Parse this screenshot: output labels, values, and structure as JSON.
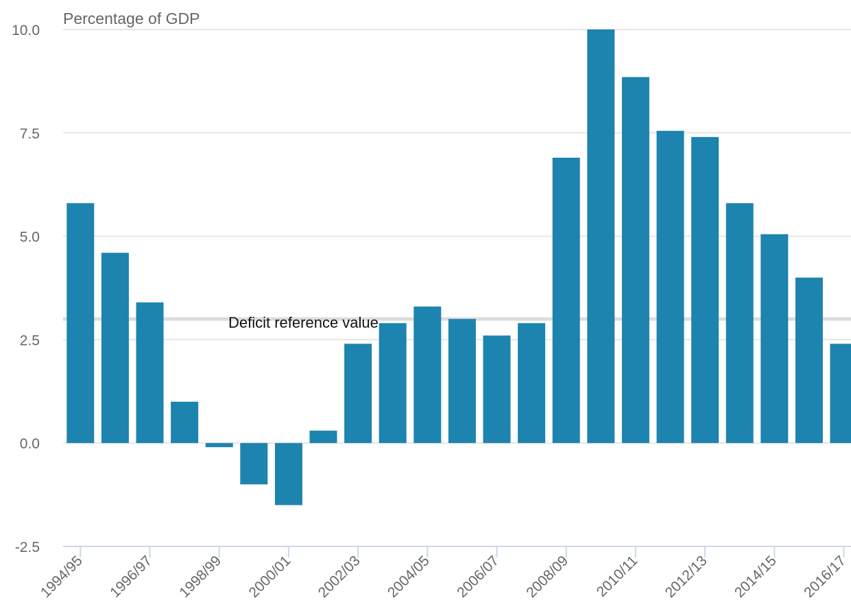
{
  "chart_data": {
    "type": "bar",
    "ylabel": "Percentage of GDP",
    "xlabel": "",
    "ylim": [
      -2.5,
      10.0
    ],
    "yticks": [
      -2.5,
      0.0,
      2.5,
      5.0,
      7.5,
      10.0
    ],
    "ytick_labels": [
      "-2.5",
      "0.0",
      "2.5",
      "5.0",
      "7.5",
      "10.0"
    ],
    "categories": [
      "1994/95",
      "1995/96",
      "1996/97",
      "1997/98",
      "1998/99",
      "1999/00",
      "2000/01",
      "2001/02",
      "2002/03",
      "2003/04",
      "2004/05",
      "2005/06",
      "2006/07",
      "2007/08",
      "2008/09",
      "2009/10",
      "2010/11",
      "2011/12",
      "2012/13",
      "2013/14",
      "2014/15",
      "2015/16",
      "2016/17"
    ],
    "xtick_labels": [
      "1994/95",
      "1996/97",
      "1998/99",
      "2000/01",
      "2002/03",
      "2004/05",
      "2006/07",
      "2008/09",
      "2010/11",
      "2012/13",
      "2014/15",
      "2016/17"
    ],
    "values": [
      5.8,
      4.6,
      3.4,
      1.0,
      -0.1,
      -1.0,
      -1.5,
      0.3,
      2.4,
      2.9,
      3.3,
      3.0,
      2.6,
      2.9,
      6.9,
      10.0,
      8.85,
      7.55,
      7.4,
      5.8,
      5.05,
      4.0,
      2.4
    ],
    "reference_line": {
      "value": 3.0,
      "label": "Deficit reference value"
    },
    "bar_color": "#1c84ae",
    "grid": true,
    "grid_color": "#e6e6e6"
  }
}
